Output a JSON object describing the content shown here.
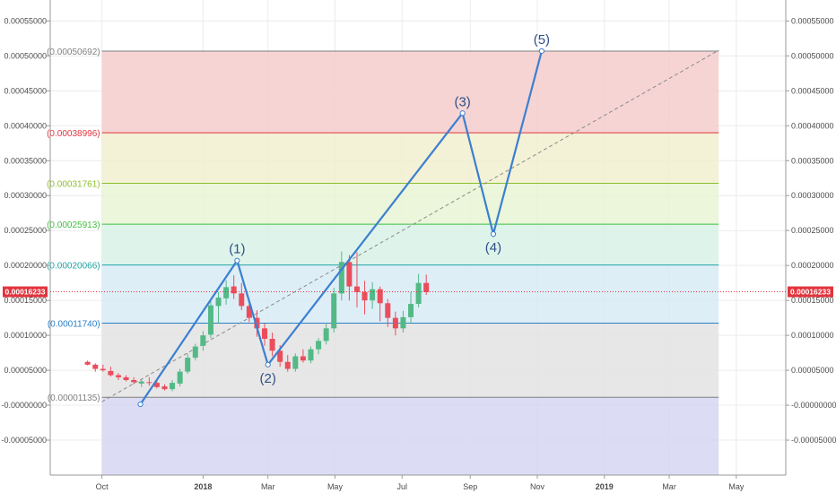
{
  "chart_data": {
    "type": "candlestick",
    "title": "",
    "ylim": [
      -0.0001,
      0.00058
    ],
    "y_ticks": [
      "0.00055000",
      "0.00050000",
      "0.00045000",
      "0.00040000",
      "0.00035000",
      "0.00030000",
      "0.00025000",
      "0.00020000",
      "0.00015000",
      "0.00010000",
      "0.00005000",
      "-0.00000000",
      "-0.00005000"
    ],
    "y_tick_values": [
      0.00055,
      0.0005,
      0.00045,
      0.0004,
      0.00035,
      0.0003,
      0.00025,
      0.0002,
      0.00015,
      0.0001,
      5e-05,
      0,
      -5e-05
    ],
    "x_ticks": [
      {
        "label": "Oct",
        "date": "2017-10-01",
        "bold": false
      },
      {
        "label": "2018",
        "date": "2018-01-01",
        "bold": true
      },
      {
        "label": "Mar",
        "date": "2018-03-01",
        "bold": false
      },
      {
        "label": "May",
        "date": "2018-05-01",
        "bold": false
      },
      {
        "label": "Jul",
        "date": "2018-07-01",
        "bold": false
      },
      {
        "label": "Sep",
        "date": "2018-09-01",
        "bold": false
      },
      {
        "label": "Nov",
        "date": "2018-11-01",
        "bold": false
      },
      {
        "label": "2019",
        "date": "2019-01-01",
        "bold": true
      },
      {
        "label": "Mar",
        "date": "2019-03-01",
        "bold": false
      },
      {
        "label": "May",
        "date": "2019-05-01",
        "bold": false
      }
    ],
    "x_range": [
      "2017-08-15",
      "2019-06-15"
    ],
    "grid": true,
    "current_price": {
      "label": "0.00016233",
      "value": 0.00016233,
      "color": "#e2343d"
    },
    "fib_levels": [
      {
        "label": "(0.00050692)",
        "value": 0.00050692,
        "color": "#7f7f7f",
        "fill": "#f4cccc"
      },
      {
        "label": "(0.00038996)",
        "value": 0.00038996,
        "color": "#e2343d",
        "fill": "#f1efcf"
      },
      {
        "label": "(0.00031761)",
        "value": 0.00031761,
        "color": "#8fbf2e",
        "fill": "#e8f5d3"
      },
      {
        "label": "(0.00025913)",
        "value": 0.00025913,
        "color": "#3fbf3f",
        "fill": "#d8f2e8"
      },
      {
        "label": "(0.00020066)",
        "value": 0.00020066,
        "color": "#22a6a6",
        "fill": "#d8ebf6"
      },
      {
        "label": "(0.00011740)",
        "value": 0.0001174,
        "color": "#2b7fc6",
        "fill": "#e3e3e3"
      },
      {
        "label": "(0.00001135)",
        "value": 1.135e-05,
        "color": "#7f7f7f",
        "fill": "#d6d6f2"
      }
    ],
    "fib_start": "2017-10-01",
    "fib_end": "2019-04-15",
    "fib_bottom_value": -0.00012,
    "trend_line": {
      "from": {
        "date": "2017-10-01",
        "value": 5e-06
      },
      "to": {
        "date": "2019-04-15",
        "value": 0.000508
      }
    },
    "elliott_wave": {
      "points": [
        {
          "label": "",
          "date": "2017-11-05",
          "value": 1.35e-06
        },
        {
          "label": "(1)",
          "date": "2018-02-01",
          "value": 0.000207
        },
        {
          "label": "(2)",
          "date": "2018-03-01",
          "value": 5.8e-05
        },
        {
          "label": "(3)",
          "date": "2018-08-25",
          "value": 0.000418
        },
        {
          "label": "(4)",
          "date": "2018-09-22",
          "value": 0.000245
        },
        {
          "label": "(5)",
          "date": "2018-11-05",
          "value": 0.00050692
        }
      ],
      "color": "#3c7fd0"
    },
    "candles": [
      {
        "date": "2017-09-18",
        "open": 6.2e-05,
        "high": 6.4e-05,
        "low": 5.7e-05,
        "close": 5.8e-05
      },
      {
        "date": "2017-09-25",
        "open": 5.8e-05,
        "high": 6e-05,
        "low": 4.8e-05,
        "close": 5.2e-05
      },
      {
        "date": "2017-10-02",
        "open": 5.2e-05,
        "high": 5.8e-05,
        "low": 4.8e-05,
        "close": 5e-05
      },
      {
        "date": "2017-10-09",
        "open": 4.9e-05,
        "high": 5.5e-05,
        "low": 4.1e-05,
        "close": 4.3e-05
      },
      {
        "date": "2017-10-16",
        "open": 4.3e-05,
        "high": 4.6e-05,
        "low": 3.6e-05,
        "close": 4e-05
      },
      {
        "date": "2017-10-23",
        "open": 4e-05,
        "high": 4.3e-05,
        "low": 3.4e-05,
        "close": 3.6e-05
      },
      {
        "date": "2017-10-30",
        "open": 3.6e-05,
        "high": 4e-05,
        "low": 3e-05,
        "close": 3.3e-05
      },
      {
        "date": "2017-11-06",
        "open": 3.1e-05,
        "high": 3.7e-05,
        "low": 2.6e-05,
        "close": 3.4e-05
      },
      {
        "date": "2017-11-13",
        "open": 3.3e-05,
        "high": 4e-05,
        "low": 2.8e-05,
        "close": 3.2e-05
      },
      {
        "date": "2017-11-20",
        "open": 3.2e-05,
        "high": 3.5e-05,
        "low": 2.4e-05,
        "close": 2.6e-05
      },
      {
        "date": "2017-11-27",
        "open": 2.7e-05,
        "high": 3e-05,
        "low": 2.1e-05,
        "close": 2.3e-05
      },
      {
        "date": "2017-12-04",
        "open": 2.3e-05,
        "high": 3.6e-05,
        "low": 2e-05,
        "close": 3.2e-05
      },
      {
        "date": "2017-12-11",
        "open": 3.1e-05,
        "high": 5.2e-05,
        "low": 2.7e-05,
        "close": 4.8e-05
      },
      {
        "date": "2017-12-18",
        "open": 4.8e-05,
        "high": 7.4e-05,
        "low": 4.5e-05,
        "close": 6.8e-05
      },
      {
        "date": "2017-12-25",
        "open": 6.8e-05,
        "high": 8.8e-05,
        "low": 6.4e-05,
        "close": 8.4e-05
      },
      {
        "date": "2018-01-01",
        "open": 8.5e-05,
        "high": 0.000106,
        "low": 7.8e-05,
        "close": 0.0001
      },
      {
        "date": "2018-01-08",
        "open": 0.000101,
        "high": 0.00015,
        "low": 9.6e-05,
        "close": 0.000143
      },
      {
        "date": "2018-01-15",
        "open": 0.000142,
        "high": 0.000162,
        "low": 0.000117,
        "close": 0.000154
      },
      {
        "date": "2018-01-22",
        "open": 0.000153,
        "high": 0.000179,
        "low": 0.000144,
        "close": 0.000169
      },
      {
        "date": "2018-01-29",
        "open": 0.00017,
        "high": 0.000186,
        "low": 0.000152,
        "close": 0.00016
      },
      {
        "date": "2018-02-05",
        "open": 0.00016,
        "high": 0.000175,
        "low": 0.000136,
        "close": 0.000142
      },
      {
        "date": "2018-02-12",
        "open": 0.000142,
        "high": 0.000152,
        "low": 0.000119,
        "close": 0.000125
      },
      {
        "date": "2018-02-19",
        "open": 0.000125,
        "high": 0.000136,
        "low": 9.8e-05,
        "close": 0.00011
      },
      {
        "date": "2018-02-26",
        "open": 0.00011,
        "high": 0.000117,
        "low": 8.5e-05,
        "close": 9.5e-05
      },
      {
        "date": "2018-03-05",
        "open": 9.5e-05,
        "high": 0.000104,
        "low": 7e-05,
        "close": 7.8e-05
      },
      {
        "date": "2018-03-12",
        "open": 7.8e-05,
        "high": 8.6e-05,
        "low": 5.5e-05,
        "close": 6.2e-05
      },
      {
        "date": "2018-03-19",
        "open": 6.2e-05,
        "high": 7.2e-05,
        "low": 4.8e-05,
        "close": 5.2e-05
      },
      {
        "date": "2018-03-26",
        "open": 5.2e-05,
        "high": 7.4e-05,
        "low": 4.8e-05,
        "close": 7e-05
      },
      {
        "date": "2018-04-02",
        "open": 7e-05,
        "high": 8e-05,
        "low": 6.1e-05,
        "close": 6.4e-05
      },
      {
        "date": "2018-04-09",
        "open": 6.4e-05,
        "high": 8.4e-05,
        "low": 6e-05,
        "close": 8e-05
      },
      {
        "date": "2018-04-16",
        "open": 8e-05,
        "high": 9.6e-05,
        "low": 7.3e-05,
        "close": 9.2e-05
      },
      {
        "date": "2018-04-23",
        "open": 9.2e-05,
        "high": 0.000118,
        "low": 8.7e-05,
        "close": 0.00011
      },
      {
        "date": "2018-04-30",
        "open": 0.00011,
        "high": 0.000168,
        "low": 0.000104,
        "close": 0.00016
      },
      {
        "date": "2018-05-07",
        "open": 0.00016,
        "high": 0.00022,
        "low": 0.00015,
        "close": 0.000205
      },
      {
        "date": "2018-05-14",
        "open": 0.000205,
        "high": 0.000215,
        "low": 0.00015,
        "close": 0.00017
      },
      {
        "date": "2018-05-21",
        "open": 0.00017,
        "high": 0.000219,
        "low": 0.00014,
        "close": 0.000162
      },
      {
        "date": "2018-05-28",
        "open": 0.000162,
        "high": 0.000178,
        "low": 0.00013,
        "close": 0.00015
      },
      {
        "date": "2018-06-04",
        "open": 0.00015,
        "high": 0.000176,
        "low": 0.000138,
        "close": 0.000166
      },
      {
        "date": "2018-06-11",
        "open": 0.000166,
        "high": 0.00017,
        "low": 0.00012,
        "close": 0.000146
      },
      {
        "date": "2018-06-18",
        "open": 0.000146,
        "high": 0.000152,
        "low": 0.000112,
        "close": 0.000125
      },
      {
        "date": "2018-06-25",
        "open": 0.000125,
        "high": 0.000134,
        "low": 0.0001,
        "close": 0.00011
      },
      {
        "date": "2018-07-02",
        "open": 0.00011,
        "high": 0.000135,
        "low": 0.000104,
        "close": 0.000126
      },
      {
        "date": "2018-07-09",
        "open": 0.000126,
        "high": 0.000162,
        "low": 0.000117,
        "close": 0.000145
      },
      {
        "date": "2018-07-16",
        "open": 0.000145,
        "high": 0.000188,
        "low": 0.00014,
        "close": 0.000175
      },
      {
        "date": "2018-07-23",
        "open": 0.000175,
        "high": 0.000187,
        "low": 0.000158,
        "close": 0.000162
      }
    ]
  }
}
